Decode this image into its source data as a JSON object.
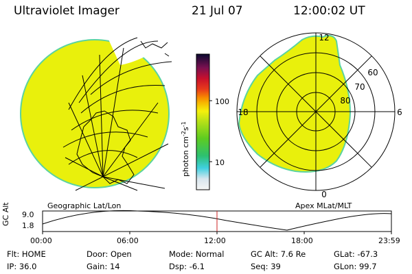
{
  "header": {
    "instrument": "Ultraviolet Imager",
    "date": "21 Jul 07",
    "time": "12:00:02 UT"
  },
  "panels": {
    "left_label": "Geographic Lat/Lon",
    "right_label": "Apex MLat/MLT"
  },
  "polar": {
    "mlt_labels": [
      "12",
      "18",
      "6",
      "0"
    ],
    "mlat_labels": [
      "60",
      "70",
      "80"
    ]
  },
  "colorbar": {
    "unit": "photon cm^-2 s^-1",
    "tick_labels": [
      "100",
      "10"
    ]
  },
  "altitude_plot": {
    "ylabel": "GC Alt",
    "ytick_labels": [
      "9.0",
      "1.8"
    ],
    "xtick_labels": [
      "00:00",
      "06:00",
      "12:00",
      "18:00",
      "23:59"
    ]
  },
  "info": {
    "row1": [
      {
        "label": "Flt:",
        "value": "HOME"
      },
      {
        "label": "Door:",
        "value": "Open"
      },
      {
        "label": "Mode:",
        "value": "Normal"
      },
      {
        "label": "GC Alt:",
        "value": "7.6 Re"
      },
      {
        "label": "GLat:",
        "value": "-67.3"
      }
    ],
    "row2": [
      {
        "label": "IP:",
        "value": "36.0"
      },
      {
        "label": "Gain:",
        "value": "14"
      },
      {
        "label": "Dsp:",
        "value": "-6.1"
      },
      {
        "label": "Seq:",
        "value": "39"
      },
      {
        "label": "GLon:",
        "value": "99.7"
      }
    ]
  },
  "colors": {
    "emission": "#e9f00c",
    "edge": "#5ad3a0",
    "marker": "#cc2020"
  }
}
